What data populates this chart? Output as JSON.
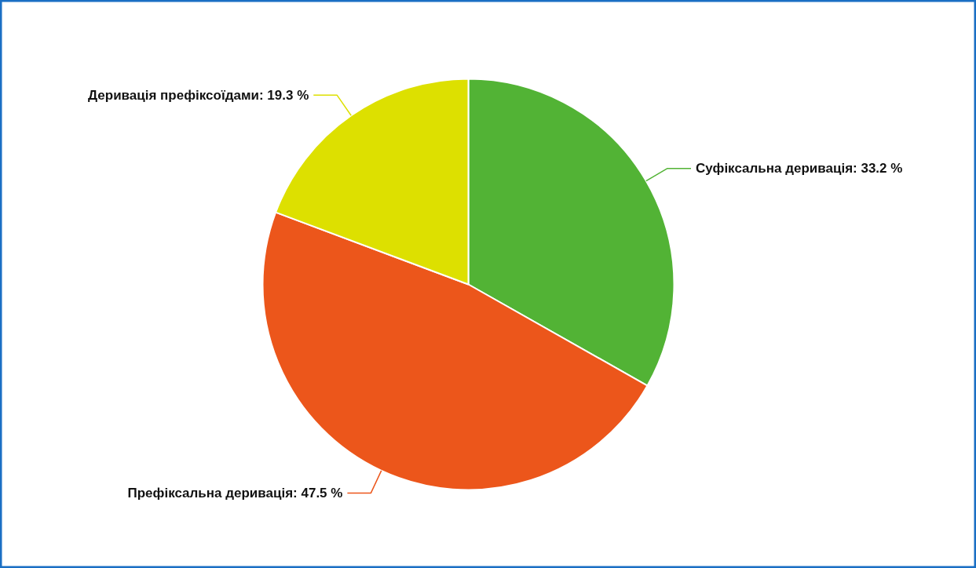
{
  "chart_data": {
    "type": "pie",
    "categories": [
      "Суфіксальна деривація",
      "Префіксальна деривація",
      "Деривація префіксоїдами"
    ],
    "values": [
      33.2,
      47.5,
      19.3
    ],
    "colors": [
      "#52b335",
      "#ec561b",
      "#dde000"
    ],
    "value_labels": [
      "33.2 %",
      "47.5 %",
      "19.3 %"
    ],
    "legend": false
  }
}
